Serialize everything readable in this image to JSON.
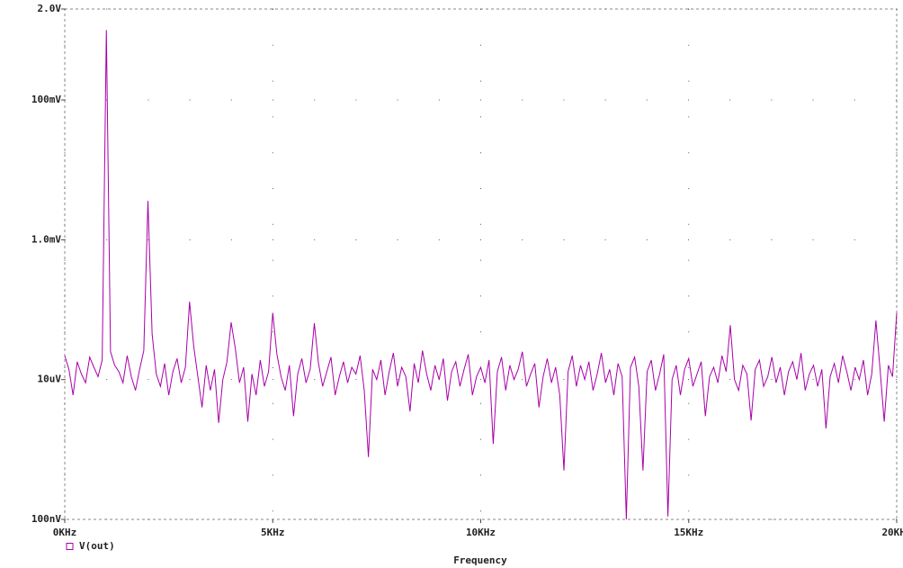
{
  "chart_data": {
    "type": "line",
    "log_y": true,
    "grid": true,
    "x_label": "Frequency",
    "xlim": [
      0,
      20000
    ],
    "xticks": [
      {
        "value": 0,
        "label": "0KHz"
      },
      {
        "value": 5000,
        "label": "5KHz"
      },
      {
        "value": 10000,
        "label": "10KHz"
      },
      {
        "value": 15000,
        "label": "15KHz"
      },
      {
        "value": 20000,
        "label": "20KHz"
      }
    ],
    "ylim": [
      1e-07,
      2
    ],
    "yticks": [
      {
        "value": 1e-07,
        "label": "100nV"
      },
      {
        "value": 1e-05,
        "label": "10uV"
      },
      {
        "value": 0.001,
        "label": "1.0mV"
      },
      {
        "value": 0.1,
        "label": "100mV"
      },
      {
        "value": 2,
        "label": "2.0V"
      }
    ],
    "x": [
      0,
      100,
      200,
      300,
      400,
      500,
      600,
      700,
      800,
      900,
      1000,
      1100,
      1200,
      1300,
      1400,
      1500,
      1600,
      1700,
      1800,
      1900,
      2000,
      2100,
      2200,
      2300,
      2400,
      2500,
      2600,
      2700,
      2800,
      2900,
      3000,
      3100,
      3200,
      3300,
      3400,
      3500,
      3600,
      3700,
      3800,
      3900,
      4000,
      4100,
      4200,
      4300,
      4400,
      4500,
      4600,
      4700,
      4800,
      4900,
      5000,
      5100,
      5200,
      5300,
      5400,
      5500,
      5600,
      5700,
      5800,
      5900,
      6000,
      6100,
      6200,
      6300,
      6400,
      6500,
      6600,
      6700,
      6800,
      6900,
      7000,
      7100,
      7200,
      7300,
      7400,
      7500,
      7600,
      7700,
      7800,
      7900,
      8000,
      8100,
      8200,
      8300,
      8400,
      8500,
      8600,
      8700,
      8800,
      8900,
      9000,
      9100,
      9200,
      9300,
      9400,
      9500,
      9600,
      9700,
      9800,
      9900,
      10000,
      10100,
      10200,
      10300,
      10400,
      10500,
      10600,
      10700,
      10800,
      10900,
      11000,
      11100,
      11200,
      11300,
      11400,
      11500,
      11600,
      11700,
      11800,
      11900,
      12000,
      12100,
      12200,
      12300,
      12400,
      12500,
      12600,
      12700,
      12800,
      12900,
      13000,
      13100,
      13200,
      13300,
      13400,
      13500,
      13600,
      13700,
      13800,
      13900,
      14000,
      14100,
      14200,
      14300,
      14400,
      14500,
      14600,
      14700,
      14800,
      14900,
      15000,
      15100,
      15200,
      15300,
      15400,
      15500,
      15600,
      15700,
      15800,
      15900,
      16000,
      16100,
      16200,
      16300,
      16400,
      16500,
      16600,
      16700,
      16800,
      16900,
      17000,
      17100,
      17200,
      17300,
      17400,
      17500,
      17600,
      17700,
      17800,
      17900,
      18000,
      18100,
      18200,
      18300,
      18400,
      18500,
      18600,
      18700,
      18800,
      18900,
      19000,
      19100,
      19200,
      19300,
      19400,
      19500,
      19600,
      19700,
      19800,
      19900,
      20000
    ],
    "series": [
      {
        "name": "V(out)",
        "color": "#a800a8",
        "values": [
          2.2e-05,
          1.4e-05,
          6e-06,
          1.8e-05,
          1.2e-05,
          9e-06,
          2.1e-05,
          1.5e-05,
          1.1e-05,
          1.9e-05,
          1.0,
          2.5e-05,
          1.6e-05,
          1.3e-05,
          9e-06,
          2.2e-05,
          1.1e-05,
          7e-06,
          1.4e-05,
          2.6e-05,
          0.0036,
          4.5e-05,
          1.2e-05,
          8e-06,
          1.7e-05,
          6e-06,
          1.3e-05,
          2e-05,
          9e-06,
          1.5e-05,
          0.00013,
          3e-05,
          1.1e-05,
          4e-06,
          1.6e-05,
          7e-06,
          1.4e-05,
          2.4e-06,
          1e-05,
          1.8e-05,
          6.6e-05,
          2.8e-05,
          9e-06,
          1.5e-05,
          2.5e-06,
          1.2e-05,
          6e-06,
          1.9e-05,
          8e-06,
          1.3e-05,
          9e-05,
          2.3e-05,
          1.1e-05,
          7e-06,
          1.6e-05,
          3e-06,
          1.2e-05,
          2e-05,
          9e-06,
          1.4e-05,
          6.4e-05,
          1.7e-05,
          8e-06,
          1.3e-05,
          2.1e-05,
          6e-06,
          1.1e-05,
          1.8e-05,
          9e-06,
          1.5e-05,
          1.2e-05,
          2.2e-05,
          7e-06,
          7.8e-07,
          1.4e-05,
          1e-05,
          1.9e-05,
          6e-06,
          1.3e-05,
          2.4e-05,
          8e-06,
          1.5e-05,
          1.1e-05,
          3.5e-06,
          1.7e-05,
          9e-06,
          2.6e-05,
          1.2e-05,
          7e-06,
          1.6e-05,
          1e-05,
          2e-05,
          5e-06,
          1.3e-05,
          1.8e-05,
          8e-06,
          1.4e-05,
          2.3e-05,
          6e-06,
          1.1e-05,
          1.5e-05,
          9e-06,
          1.9e-05,
          1.2e-06,
          1.3e-05,
          2.1e-05,
          7e-06,
          1.6e-05,
          1e-05,
          1.4e-05,
          2.5e-05,
          8e-06,
          1.2e-05,
          1.7e-05,
          4e-06,
          1.1e-05,
          2e-05,
          9e-06,
          1.5e-05,
          6e-06,
          5e-07,
          1.3e-05,
          2.2e-05,
          8e-06,
          1.6e-05,
          1e-05,
          1.8e-05,
          7e-06,
          1.2e-05,
          2.4e-05,
          9e-06,
          1.4e-05,
          6e-06,
          1.7e-05,
          1.1e-05,
          1e-07,
          1.5e-05,
          2.1e-05,
          8e-06,
          5e-07,
          1.3e-05,
          1.9e-05,
          7e-06,
          1.2e-05,
          2.3e-05,
          1.1e-07,
          1e-05,
          1.6e-05,
          6e-06,
          1.4e-05,
          2e-05,
          8e-06,
          1.2e-05,
          1.8e-05,
          3e-06,
          1.1e-05,
          1.5e-05,
          9e-06,
          2.2e-05,
          1.3e-05,
          6e-05,
          1e-05,
          7e-06,
          1.6e-05,
          1.2e-05,
          2.6e-06,
          1.4e-05,
          1.9e-05,
          8e-06,
          1.1e-05,
          2.1e-05,
          9e-06,
          1.5e-05,
          6e-06,
          1.3e-05,
          1.8e-05,
          1e-05,
          2.4e-05,
          7e-06,
          1.2e-05,
          1.6e-05,
          8e-06,
          1.4e-05,
          2e-06,
          1.1e-05,
          1.7e-05,
          9e-06,
          2.2e-05,
          1.3e-05,
          7e-06,
          1.5e-05,
          1e-05,
          1.9e-05,
          6e-06,
          1.2e-05,
          7e-05,
          1.4e-05,
          2.5e-06,
          1.6e-05,
          1.1e-05,
          9e-05
        ]
      }
    ]
  }
}
